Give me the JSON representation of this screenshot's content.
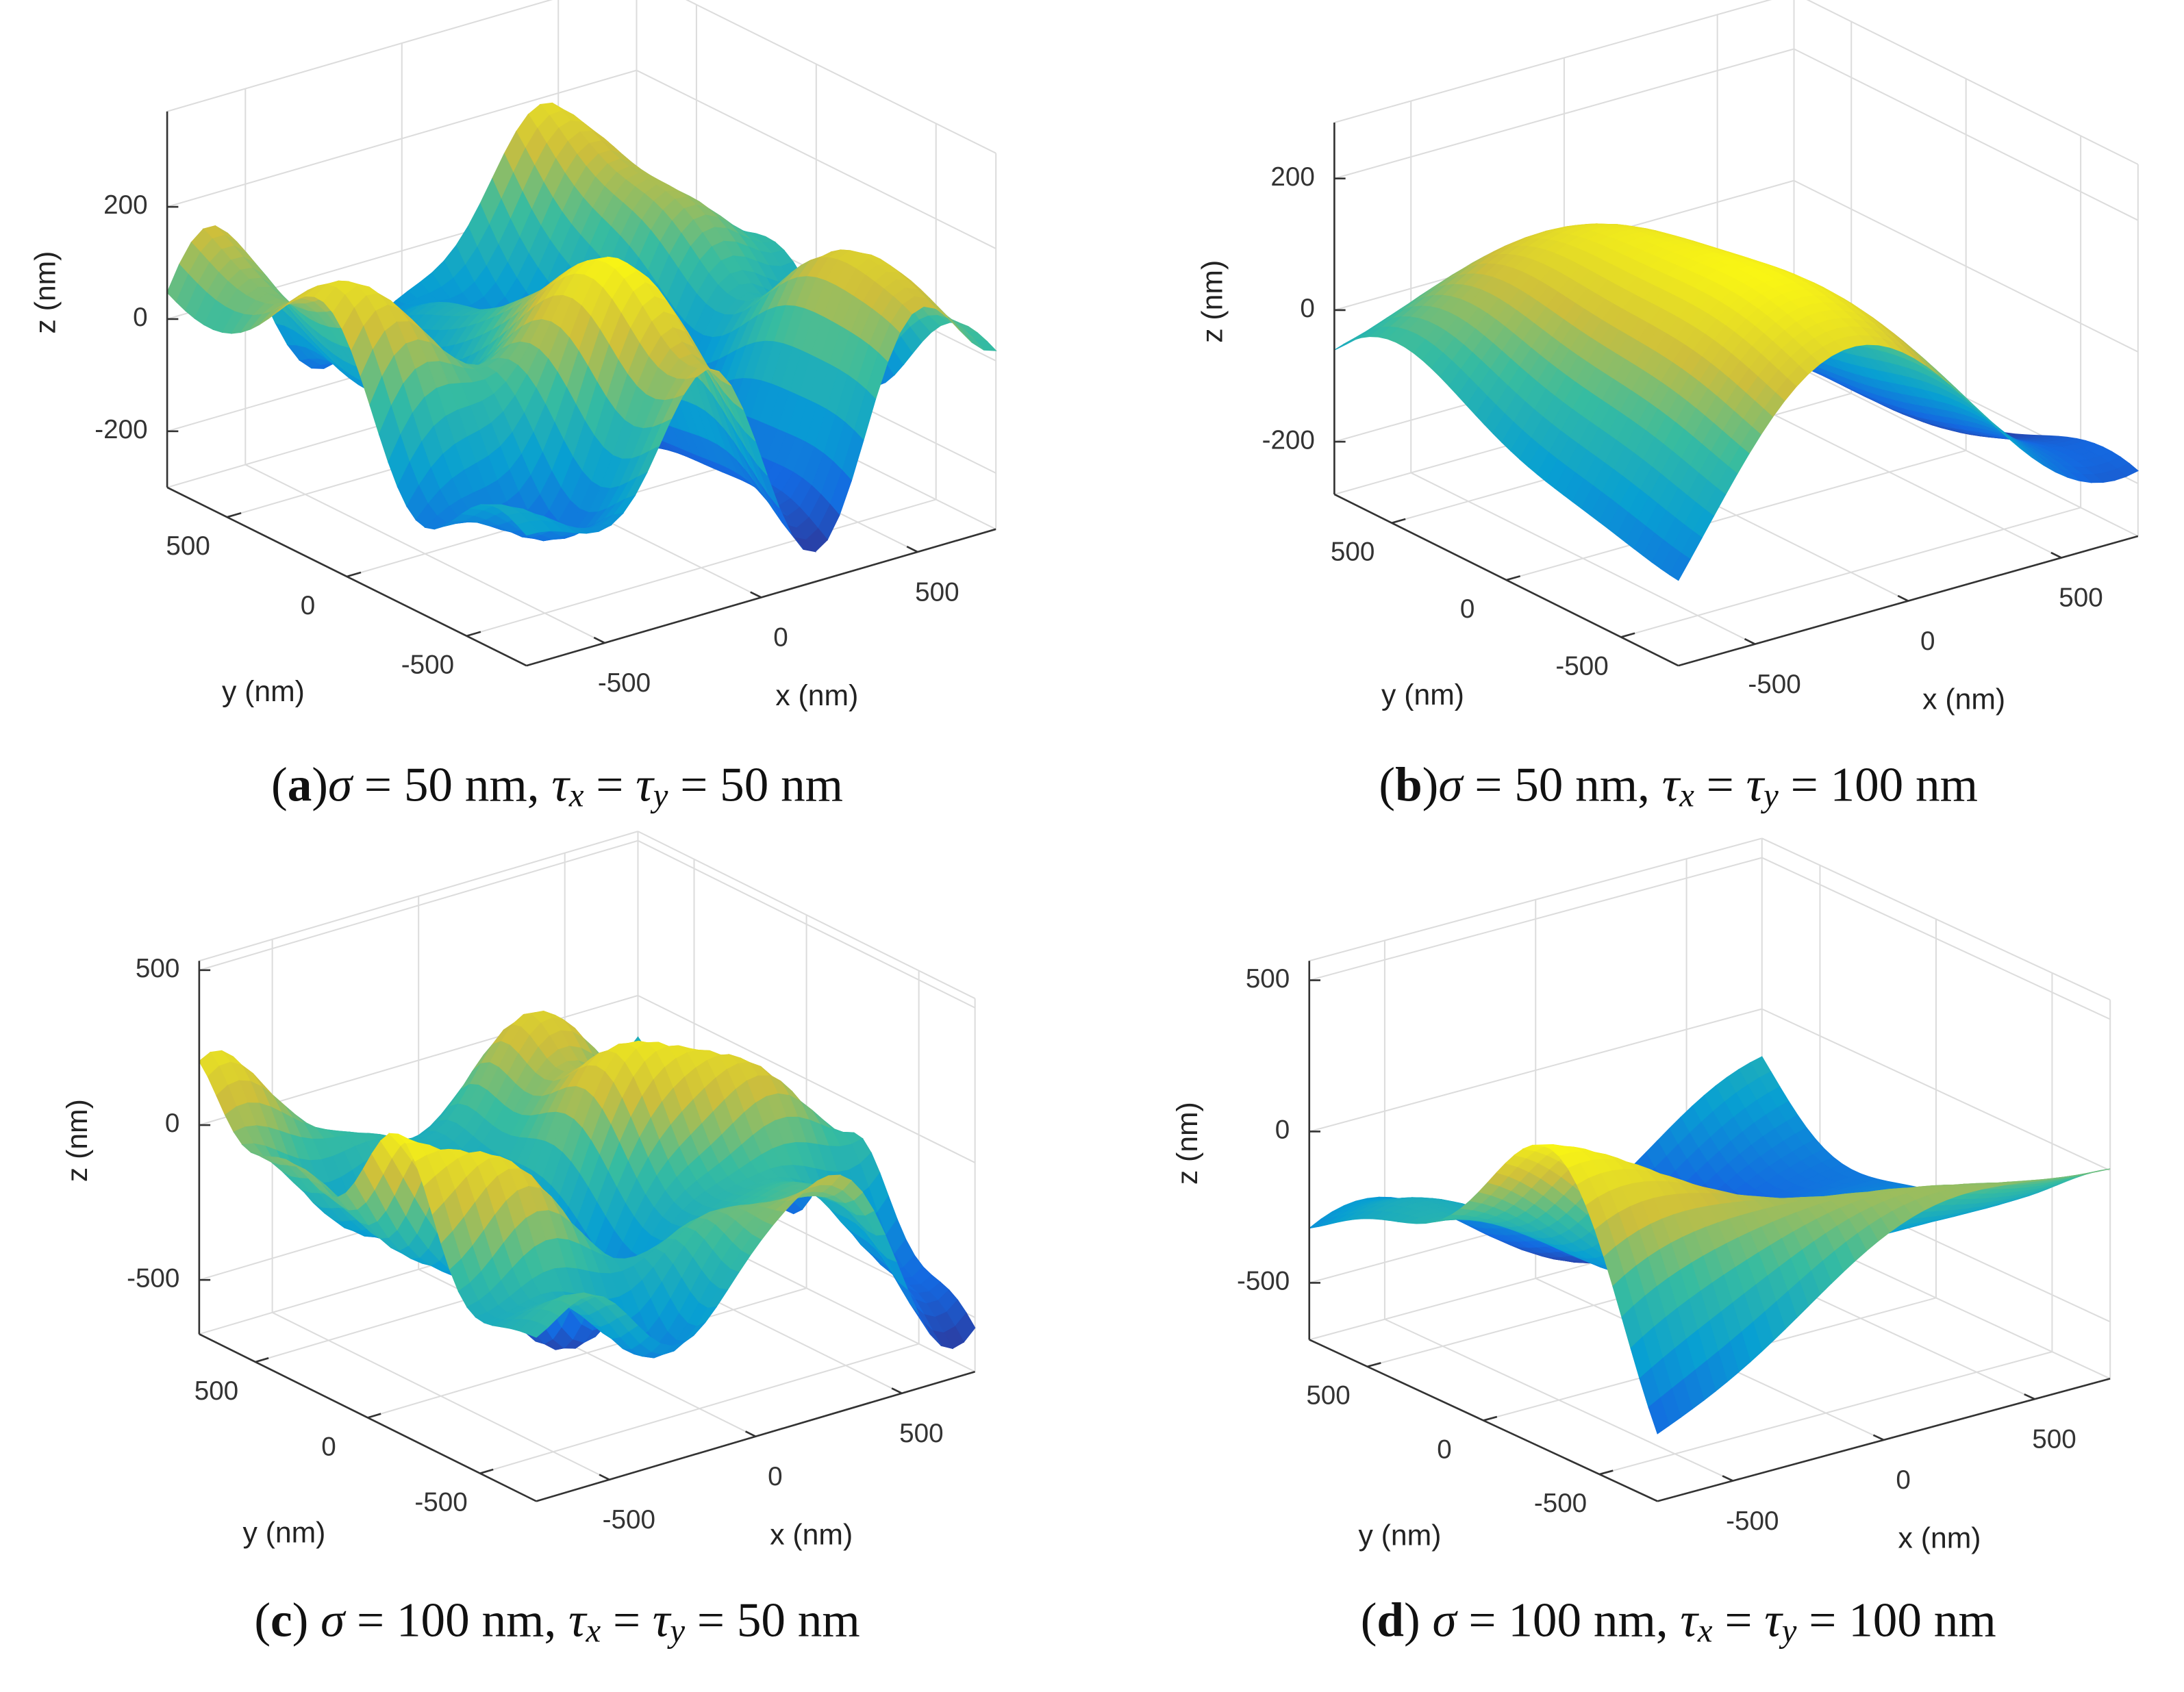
{
  "chart_data": [
    {
      "type": "surface",
      "xlabel": "x (nm)",
      "ylabel": "y (nm)",
      "zlabel": "z (nm)",
      "xlim": [
        -750,
        750
      ],
      "ylim": [
        -750,
        750
      ],
      "zlim": [
        -300,
        370
      ],
      "xticks": [
        -500,
        0,
        500
      ],
      "yticks": [
        -500,
        0,
        500
      ],
      "zticks": [
        -200,
        0,
        200
      ],
      "colormap": "parula",
      "grid": true,
      "caption": [
        "(",
        "a",
        ")",
        "σ",
        " = 50 nm, ",
        "τ",
        "x",
        " = ",
        "τ",
        "y",
        " = 50 nm"
      ]
    },
    {
      "type": "surface",
      "xlabel": "x (nm)",
      "ylabel": "y (nm)",
      "zlabel": "z (nm)",
      "xlim": [
        -750,
        750
      ],
      "ylim": [
        -750,
        750
      ],
      "zlim": [
        -280,
        285
      ],
      "xticks": [
        -500,
        0,
        500
      ],
      "yticks": [
        -500,
        0,
        500
      ],
      "zticks": [
        -200,
        0,
        200
      ],
      "colormap": "parula",
      "grid": true,
      "caption": [
        "(",
        "b",
        ")",
        "σ",
        " = 50 nm, ",
        "τ",
        "x",
        " = ",
        "τ",
        "y",
        " = 100 nm"
      ]
    },
    {
      "type": "surface",
      "xlabel": "x (nm)",
      "ylabel": "y (nm)",
      "zlabel": "z (nm)",
      "xlim": [
        -750,
        750
      ],
      "ylim": [
        -750,
        750
      ],
      "zlim": [
        -675,
        530
      ],
      "xticks": [
        -500,
        0,
        500
      ],
      "yticks": [
        -500,
        0,
        500
      ],
      "zticks": [
        -500,
        0,
        500
      ],
      "colormap": "parula",
      "grid": true,
      "caption": [
        "(",
        "c",
        ") ",
        "σ",
        " = 100 nm, ",
        "τ",
        "x",
        " = ",
        "τ",
        "y",
        " = 50 nm"
      ]
    },
    {
      "type": "surface",
      "xlabel": "x (nm)",
      "ylabel": "y (nm)",
      "zlabel": "z (nm)",
      "xlim": [
        -750,
        750
      ],
      "ylim": [
        -750,
        750
      ],
      "zlim": [
        -688,
        564
      ],
      "xticks": [
        -500,
        0,
        500
      ],
      "yticks": [
        -500,
        0,
        500
      ],
      "zticks": [
        -500,
        0,
        500
      ],
      "colormap": "parula",
      "grid": true,
      "caption": [
        "(",
        "d",
        ") ",
        "σ",
        " = 100 nm, ",
        "τ",
        "x",
        " = ",
        "τ",
        "y",
        " = 100 nm"
      ]
    }
  ]
}
